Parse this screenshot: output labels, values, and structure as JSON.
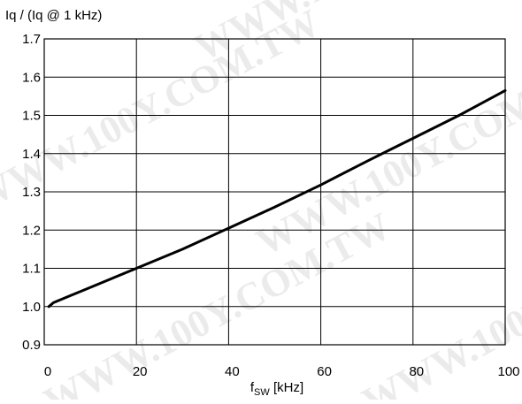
{
  "chart_data": {
    "type": "line",
    "ylabel": "Iq / (Iq @ 1 kHz)",
    "xlabel_main": "f",
    "xlabel_sub": "SW",
    "xlabel_unit": " [kHz]",
    "xlim": [
      0,
      100
    ],
    "ylim": [
      0.9,
      1.7
    ],
    "x_ticks": [
      0,
      20,
      40,
      60,
      80,
      100
    ],
    "y_ticks": [
      0.9,
      1.0,
      1.1,
      1.2,
      1.3,
      1.4,
      1.5,
      1.6,
      1.7
    ],
    "x_tick_labels": [
      "0",
      "20",
      "40",
      "60",
      "80",
      "100"
    ],
    "y_tick_labels": [
      "0.9",
      "1.0",
      "1.1",
      "1.2",
      "1.3",
      "1.4",
      "1.5",
      "1.6",
      "1.7"
    ],
    "grid": true,
    "series": [
      {
        "x": [
          1,
          2,
          5,
          10,
          20,
          30,
          40,
          50,
          60,
          70,
          75,
          80,
          90,
          100
        ],
        "y": [
          1.0,
          1.01,
          1.025,
          1.05,
          1.1,
          1.15,
          1.205,
          1.26,
          1.318,
          1.38,
          1.41,
          1.44,
          1.5,
          1.565
        ],
        "color": "#000000"
      }
    ]
  },
  "watermark": {
    "text_a": "WWW.100Y.COM.TW",
    "text_b": "WWW.100Y.COM.TW",
    "text_c": "WWW.100Y.COM.TW",
    "text_d": "WWW.100Y.COM.TW",
    "text_e": "WWW.100Y.COM.TW",
    "color": "#d4d4d4"
  }
}
